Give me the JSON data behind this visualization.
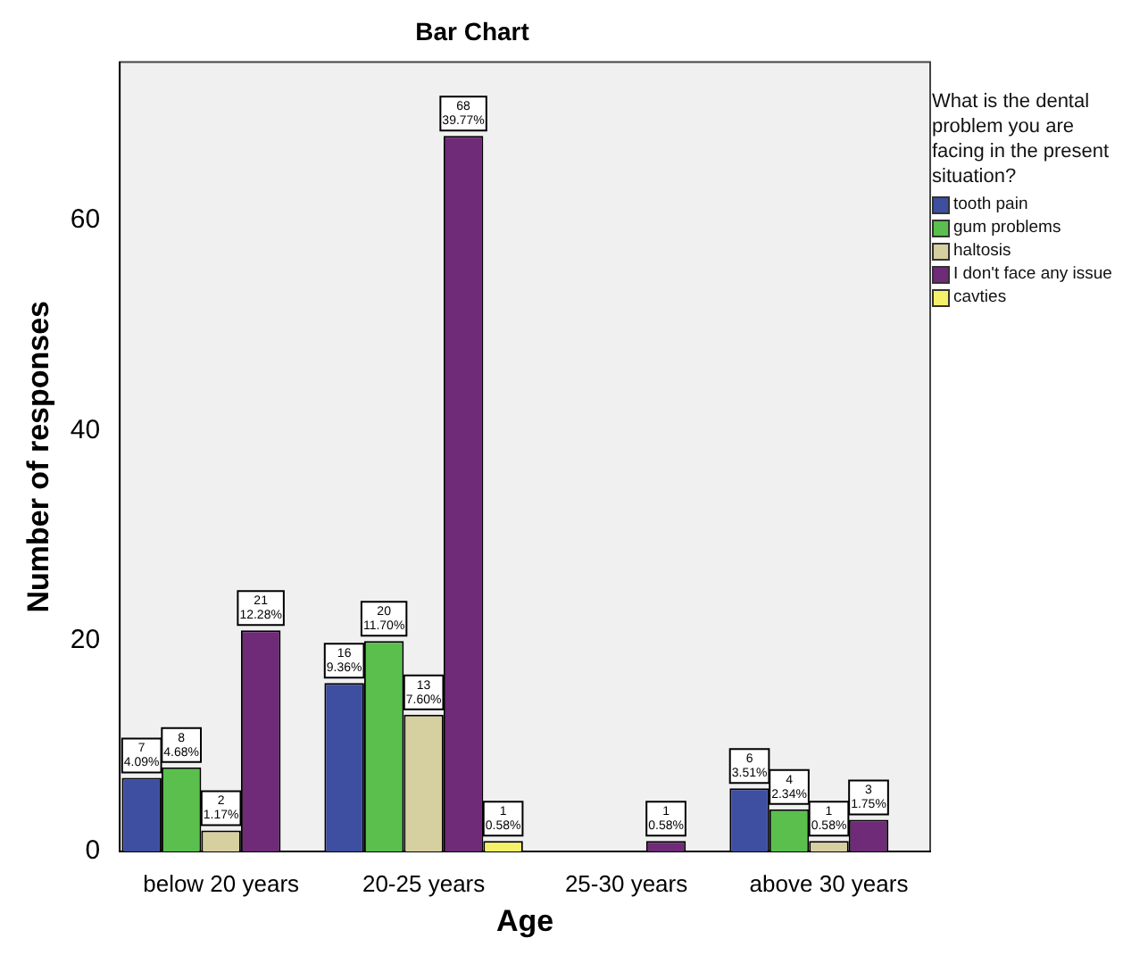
{
  "chart_data": {
    "type": "bar",
    "title": "Bar Chart",
    "xlabel": "Age",
    "ylabel": "Number of responses",
    "legend_title": "What is the dental problem you are facing in the present situation?",
    "legend": "right",
    "categories": [
      "below 20 years",
      "20-25 years",
      "25-30 years",
      "above 30 years"
    ],
    "series": [
      {
        "name": "tooth pain",
        "color": "#3e4ea0",
        "values": [
          7,
          16,
          null,
          6
        ],
        "value_labels": [
          "7\n4.09%",
          "16\n9.36%",
          null,
          "6\n3.51%"
        ]
      },
      {
        "name": "gum problems",
        "color": "#5bbf4e",
        "values": [
          8,
          20,
          null,
          4
        ],
        "value_labels": [
          "8\n4.68%",
          "20\n11.70%",
          null,
          "4\n2.34%"
        ]
      },
      {
        "name": "haltosis",
        "color": "#d6cfa0",
        "values": [
          2,
          13,
          null,
          1
        ],
        "value_labels": [
          "2\n1.17%",
          "13\n7.60%",
          null,
          "1\n0.58%"
        ]
      },
      {
        "name": "I don't face any issue",
        "color": "#6f2a78",
        "values": [
          21,
          68,
          1,
          3
        ],
        "value_labels": [
          "21\n12.28%",
          "68\n39.77%",
          "1\n0.58%",
          "3\n1.75%"
        ]
      },
      {
        "name": "cavties",
        "color": "#f5f06a",
        "values": [
          null,
          1,
          null,
          null
        ],
        "value_labels": [
          null,
          "1\n0.58%",
          null,
          null
        ]
      }
    ],
    "ylim": [
      0,
      75
    ],
    "yticks": [
      0,
      20,
      40,
      60
    ],
    "grid": false
  }
}
